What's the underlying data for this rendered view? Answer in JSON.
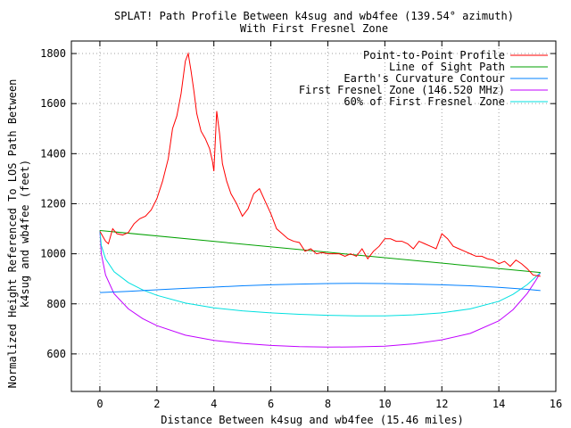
{
  "chart_data": {
    "type": "line",
    "title": "SPLAT! Path Profile Between k4sug and wb4fee (139.54° azimuth)",
    "subtitle": "With First Fresnel Zone",
    "xlabel": "Distance Between k4sug and wb4fee (15.46 miles)",
    "ylabel_line1": "Normalized Height Referenced To LOS Path Between",
    "ylabel_line2": "k4sug and wb4fee (feet)",
    "xlim": [
      -1,
      16
    ],
    "ylim": [
      450,
      1850
    ],
    "xticks": [
      0,
      2,
      4,
      6,
      8,
      10,
      12,
      14,
      16
    ],
    "yticks": [
      600,
      800,
      1000,
      1200,
      1400,
      1600,
      1800
    ],
    "grid": true,
    "legend_position": "top-right",
    "series": [
      {
        "name": "Point-to-Point Profile",
        "color": "#ff0000",
        "x": [
          0,
          0.2,
          0.3,
          0.45,
          0.6,
          0.8,
          1.0,
          1.2,
          1.4,
          1.6,
          1.8,
          2.0,
          2.2,
          2.4,
          2.55,
          2.7,
          2.85,
          3.0,
          3.1,
          3.2,
          3.3,
          3.4,
          3.55,
          3.7,
          3.85,
          3.95,
          4.0,
          4.1,
          4.2,
          4.3,
          4.45,
          4.6,
          4.8,
          5.0,
          5.2,
          5.4,
          5.6,
          5.8,
          6.0,
          6.2,
          6.4,
          6.6,
          6.8,
          7.0,
          7.2,
          7.4,
          7.6,
          7.8,
          8.0,
          8.2,
          8.4,
          8.6,
          8.8,
          9.0,
          9.2,
          9.4,
          9.6,
          9.8,
          10.0,
          10.2,
          10.4,
          10.6,
          10.8,
          11.0,
          11.2,
          11.4,
          11.6,
          11.8,
          12.0,
          12.2,
          12.4,
          12.6,
          12.8,
          13.0,
          13.2,
          13.4,
          13.6,
          13.8,
          14.0,
          14.2,
          14.4,
          14.6,
          14.8,
          15.0,
          15.2,
          15.46
        ],
        "y": [
          1090,
          1050,
          1040,
          1100,
          1080,
          1075,
          1085,
          1120,
          1140,
          1150,
          1175,
          1220,
          1290,
          1380,
          1500,
          1550,
          1640,
          1770,
          1800,
          1730,
          1650,
          1560,
          1490,
          1460,
          1420,
          1370,
          1330,
          1570,
          1480,
          1360,
          1290,
          1240,
          1200,
          1150,
          1180,
          1240,
          1260,
          1210,
          1160,
          1100,
          1080,
          1060,
          1050,
          1045,
          1010,
          1020,
          1000,
          1005,
          1000,
          1000,
          1000,
          990,
          1000,
          990,
          1020,
          980,
          1010,
          1030,
          1060,
          1060,
          1050,
          1050,
          1040,
          1020,
          1050,
          1040,
          1030,
          1020,
          1080,
          1060,
          1030,
          1020,
          1010,
          1000,
          990,
          990,
          980,
          975,
          960,
          970,
          950,
          975,
          960,
          940,
          915,
          910
        ]
      },
      {
        "name": "Line of Sight Path",
        "color": "#00a000",
        "x": [
          0,
          15.46
        ],
        "y": [
          1093,
          925
        ]
      },
      {
        "name": "Earth's Curvature Contour",
        "color": "#0080ff",
        "x": [
          0,
          1,
          2,
          3,
          4,
          5,
          6,
          7,
          8,
          9,
          10,
          11,
          12,
          13,
          14,
          15,
          15.46
        ],
        "y": [
          845,
          850,
          856,
          862,
          867,
          872,
          876,
          879,
          881,
          882,
          881,
          879,
          876,
          872,
          866,
          858,
          853
        ]
      },
      {
        "name": "First Fresnel Zone (146.520 MHz)",
        "color": "#c000ff",
        "x": [
          0,
          0.05,
          0.2,
          0.5,
          1,
          1.5,
          2,
          3,
          4,
          5,
          6,
          7,
          8,
          9,
          10,
          11,
          12,
          13,
          14,
          14.5,
          15,
          15.3,
          15.46
        ],
        "y": [
          1093,
          1000,
          915,
          840,
          780,
          741,
          713,
          675,
          654,
          642,
          634,
          629,
          627,
          628,
          631,
          640,
          656,
          682,
          732,
          777,
          842,
          894,
          925
        ]
      },
      {
        "name": "60% of First Fresnel Zone",
        "color": "#00e0e0",
        "x": [
          0,
          0.05,
          0.2,
          0.5,
          1,
          1.5,
          2,
          3,
          4,
          5,
          6,
          7,
          8,
          9,
          10,
          11,
          12,
          13,
          14,
          14.5,
          15,
          15.3,
          15.46
        ],
        "y": [
          1093,
          1033,
          980,
          928,
          885,
          856,
          834,
          803,
          784,
          772,
          764,
          758,
          754,
          752,
          752,
          756,
          764,
          780,
          810,
          838,
          877,
          908,
          925
        ]
      }
    ]
  }
}
